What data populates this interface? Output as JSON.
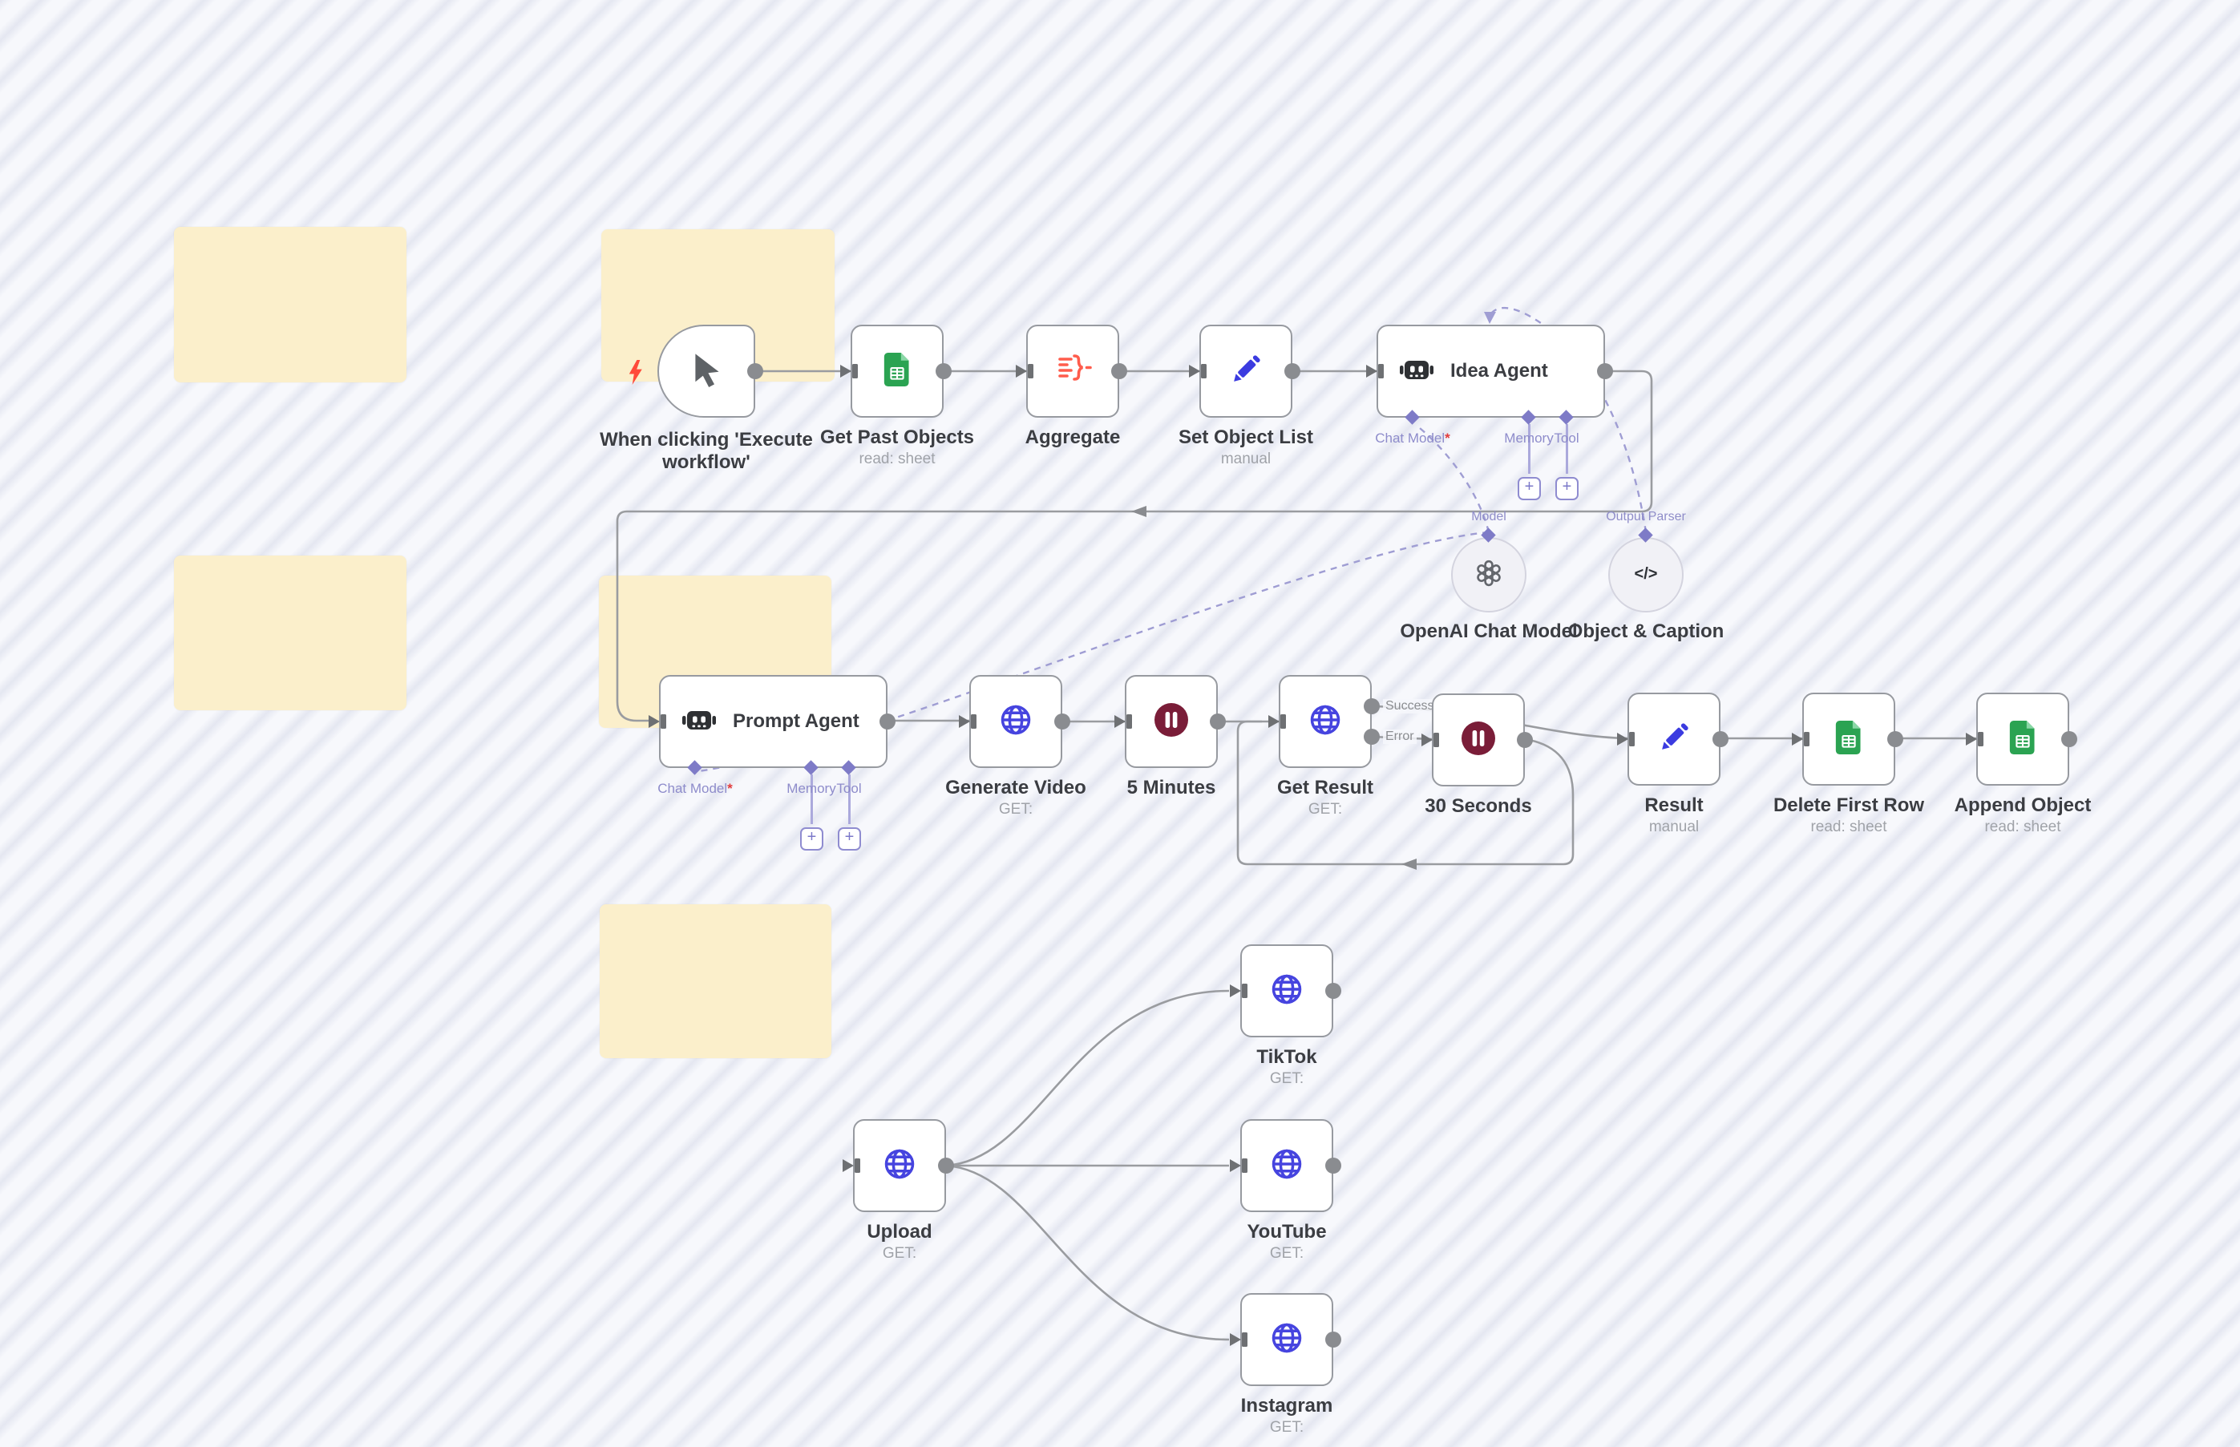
{
  "app": "workflow-editor-canvas",
  "sticky_notes": [
    {
      "name": "sticky-note-1",
      "text": "",
      "color": "#FBEFCB"
    },
    {
      "name": "sticky-note-2",
      "text": "",
      "color": "#FBEFCB"
    },
    {
      "name": "sticky-note-3",
      "text": "",
      "color": "#FBEFCB"
    },
    {
      "name": "sticky-note-4",
      "text": "",
      "color": "#FBEFCB"
    },
    {
      "name": "sticky-note-5",
      "text": "",
      "color": "#FBEFCB"
    }
  ],
  "nodes": [
    {
      "id": "manual-trigger",
      "title": "When clicking 'Execute workflow'",
      "subtitle": "",
      "icon": "cursor-icon"
    },
    {
      "id": "get-past-objects",
      "title": "Get Past Objects",
      "subtitle": "read: sheet",
      "icon": "google-sheets-icon"
    },
    {
      "id": "aggregate",
      "title": "Aggregate",
      "subtitle": "",
      "icon": "aggregate-icon"
    },
    {
      "id": "set-object-list",
      "title": "Set Object List",
      "subtitle": "manual",
      "icon": "edit-pencil-icon"
    },
    {
      "id": "idea-agent",
      "title": "Idea Agent",
      "subtitle": "",
      "icon": "robot-icon",
      "sub_inputs": [
        {
          "label": "Chat Model",
          "required": true
        },
        {
          "label": "Memory"
        },
        {
          "label": "Tool"
        }
      ]
    },
    {
      "id": "openai-chat-model",
      "title": "OpenAI Chat Model",
      "subtitle": "",
      "icon": "openai-icon",
      "top_label": "Model"
    },
    {
      "id": "object-caption",
      "title": "Object & Caption",
      "subtitle": "",
      "icon": "code-icon",
      "top_label": "Output Parser"
    },
    {
      "id": "prompt-agent",
      "title": "Prompt Agent",
      "subtitle": "",
      "icon": "robot-icon",
      "sub_inputs": [
        {
          "label": "Chat Model",
          "required": true
        },
        {
          "label": "Memory"
        },
        {
          "label": "Tool"
        }
      ]
    },
    {
      "id": "generate-video",
      "title": "Generate Video",
      "subtitle": "GET:",
      "icon": "globe-icon"
    },
    {
      "id": "five-minutes",
      "title": "5 Minutes",
      "subtitle": "",
      "icon": "pause-icon"
    },
    {
      "id": "get-result",
      "title": "Get Result",
      "subtitle": "GET:",
      "icon": "globe-icon",
      "output_labels": [
        "Success",
        "Error"
      ]
    },
    {
      "id": "thirty-seconds",
      "title": "30 Seconds",
      "subtitle": "",
      "icon": "pause-icon"
    },
    {
      "id": "result",
      "title": "Result",
      "subtitle": "manual",
      "icon": "edit-pencil-icon"
    },
    {
      "id": "delete-first-row",
      "title": "Delete First Row",
      "subtitle": "read: sheet",
      "icon": "google-sheets-icon"
    },
    {
      "id": "append-object",
      "title": "Append Object",
      "subtitle": "read: sheet",
      "icon": "google-sheets-icon"
    },
    {
      "id": "upload",
      "title": "Upload",
      "subtitle": "GET:",
      "icon": "globe-icon"
    },
    {
      "id": "tiktok",
      "title": "TikTok",
      "subtitle": "GET:",
      "icon": "globe-icon"
    },
    {
      "id": "youtube",
      "title": "YouTube",
      "subtitle": "GET:",
      "icon": "globe-icon"
    },
    {
      "id": "instagram",
      "title": "Instagram",
      "subtitle": "GET:",
      "icon": "globe-icon"
    }
  ],
  "connections": [
    {
      "from": "manual-trigger",
      "to": "get-past-objects"
    },
    {
      "from": "get-past-objects",
      "to": "aggregate"
    },
    {
      "from": "aggregate",
      "to": "set-object-list"
    },
    {
      "from": "set-object-list",
      "to": "idea-agent"
    },
    {
      "from": "idea-agent",
      "to": "prompt-agent"
    },
    {
      "from": "prompt-agent",
      "to": "generate-video"
    },
    {
      "from": "generate-video",
      "to": "five-minutes"
    },
    {
      "from": "five-minutes",
      "to": "get-result"
    },
    {
      "from": "get-result",
      "to": "result",
      "label": "Success"
    },
    {
      "from": "get-result",
      "to": "thirty-seconds",
      "label": "Error"
    },
    {
      "from": "thirty-seconds",
      "to": "get-result",
      "loop": true
    },
    {
      "from": "result",
      "to": "delete-first-row"
    },
    {
      "from": "delete-first-row",
      "to": "append-object"
    },
    {
      "from": "openai-chat-model",
      "to": "idea-agent",
      "type": "ai-model",
      "dashed": true
    },
    {
      "from": "openai-chat-model",
      "to": "prompt-agent",
      "type": "ai-model",
      "dashed": true
    },
    {
      "from": "object-caption",
      "to": "idea-agent",
      "type": "ai-output-parser",
      "dashed": true
    },
    {
      "from": "upload",
      "to": "tiktok"
    },
    {
      "from": "upload",
      "to": "youtube"
    },
    {
      "from": "upload",
      "to": "instagram"
    }
  ],
  "colors": {
    "sticky": "#FBEFCB",
    "wire": "#9A9CA0",
    "dashed_wire": "#9F9DD3",
    "node_border": "#979AA0",
    "globe_blue": "#4644DF",
    "pencil_blue": "#3B3BE0",
    "sheets_green": "#2BA352",
    "pause_maroon": "#7A1D38",
    "aggregate_red": "#FF5C4C",
    "robot_dark": "#2E3033",
    "connector_purple": "#7E7BC7",
    "trigger_bolt_red": "#FF4A3A"
  }
}
